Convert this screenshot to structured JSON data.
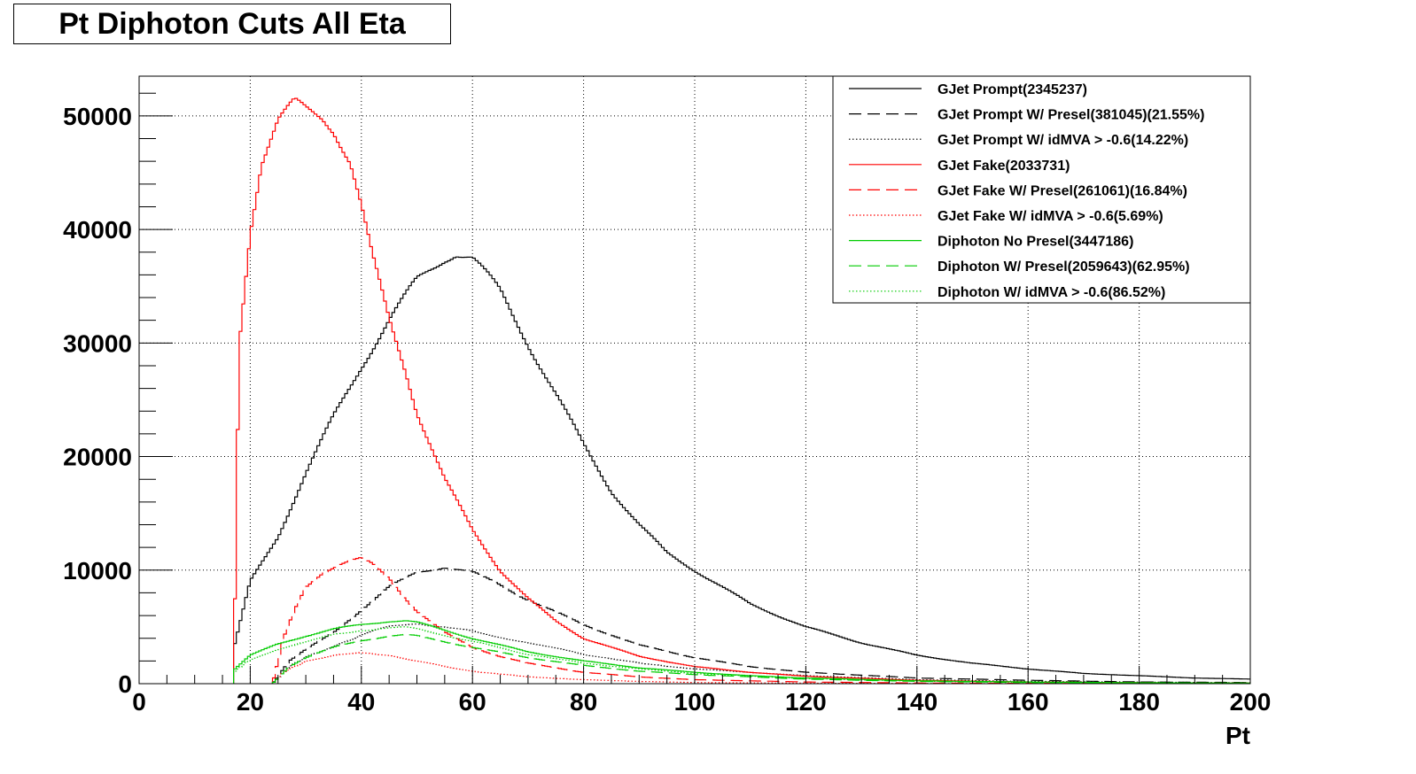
{
  "chart_data": {
    "type": "line",
    "title": "Pt Diphoton Cuts All Eta",
    "xlabel": "Pt",
    "ylabel": "",
    "xlim": [
      0,
      200
    ],
    "ylim": [
      0,
      53500
    ],
    "x_ticks": [
      0,
      20,
      40,
      60,
      80,
      100,
      120,
      140,
      160,
      180,
      200
    ],
    "y_ticks": [
      0,
      10000,
      20000,
      30000,
      40000,
      50000
    ],
    "grid": true,
    "legend_position": "top-right",
    "series": [
      {
        "name": "GJet Prompt(2345237)",
        "color": "#000000",
        "style": "solid",
        "x": [
          17,
          20,
          25,
          30,
          35,
          40,
          45,
          50,
          55,
          57,
          60,
          65,
          70,
          75,
          80,
          85,
          90,
          95,
          100,
          110,
          120,
          130,
          140,
          150,
          160,
          170,
          180,
          190,
          200
        ],
        "y": [
          3000,
          9000,
          13000,
          18500,
          23500,
          28000,
          32000,
          35500,
          37500,
          38000,
          37500,
          34500,
          30000,
          25500,
          21000,
          17000,
          14000,
          11500,
          10000,
          7000,
          5000,
          3600,
          2500,
          1800,
          1300,
          900,
          700,
          500,
          400
        ]
      },
      {
        "name": "GJet Prompt W/ Presel(381045)(21.55%)",
        "color": "#000000",
        "style": "dashed",
        "x": [
          24,
          27,
          30,
          35,
          40,
          45,
          50,
          55,
          60,
          65,
          70,
          80,
          90,
          100,
          110,
          120,
          140,
          160,
          180,
          200
        ],
        "y": [
          0,
          2000,
          3000,
          4500,
          6500,
          8500,
          9800,
          10300,
          9800,
          8700,
          7400,
          5200,
          3400,
          2300,
          1500,
          1000,
          500,
          300,
          150,
          100
        ]
      },
      {
        "name": "GJet Prompt W/ idMVA > -0.6(14.22%)",
        "color": "#000000",
        "style": "dotted",
        "x": [
          24,
          27,
          30,
          35,
          40,
          45,
          50,
          55,
          60,
          70,
          80,
          90,
          100,
          120,
          140,
          160,
          200
        ],
        "y": [
          0,
          1500,
          2300,
          3300,
          4300,
          5000,
          5300,
          5000,
          4600,
          3600,
          2600,
          1800,
          1300,
          700,
          350,
          200,
          80
        ]
      },
      {
        "name": "GJet Fake(2033731)",
        "color": "#ff0000",
        "style": "solid",
        "x": [
          17,
          18,
          20,
          22,
          25,
          28,
          30,
          33,
          35,
          38,
          40,
          42,
          45,
          48,
          50,
          55,
          60,
          65,
          70,
          75,
          80,
          90,
          100,
          110,
          120,
          140,
          160,
          180,
          200
        ],
        "y": [
          0,
          30000,
          40000,
          46000,
          49500,
          51000,
          50500,
          50000,
          49000,
          46000,
          42000,
          37500,
          32000,
          27500,
          24000,
          18000,
          13500,
          10000,
          7500,
          5500,
          4000,
          2400,
          1500,
          1000,
          650,
          300,
          150,
          80,
          50
        ]
      },
      {
        "name": "GJet Fake W/ Presel(261061)(16.84%)",
        "color": "#ff0000",
        "style": "dashed",
        "x": [
          24,
          26,
          28,
          30,
          33,
          36,
          38,
          40,
          42,
          45,
          48,
          50,
          55,
          60,
          65,
          70,
          80,
          90,
          100,
          120,
          140,
          160,
          200
        ],
        "y": [
          0,
          4000,
          6500,
          8500,
          9800,
          10500,
          10800,
          11000,
          10500,
          9300,
          7500,
          6400,
          4500,
          3200,
          2400,
          1800,
          1000,
          600,
          350,
          150,
          60,
          30,
          10
        ]
      },
      {
        "name": "GJet Fake W/ idMVA > -0.6(5.69%)",
        "color": "#ff0000",
        "style": "dotted",
        "x": [
          24,
          26,
          30,
          35,
          40,
          45,
          50,
          55,
          60,
          70,
          80,
          90,
          100,
          120,
          140,
          200
        ],
        "y": [
          0,
          1000,
          2000,
          2500,
          2700,
          2500,
          2000,
          1500,
          1100,
          600,
          350,
          200,
          100,
          40,
          20,
          5
        ]
      },
      {
        "name": "Diphoton No Presel(3447186)",
        "color": "#00cc00",
        "style": "solid",
        "x": [
          17,
          20,
          25,
          30,
          35,
          40,
          45,
          48,
          50,
          55,
          60,
          65,
          70,
          80,
          90,
          100,
          110,
          120,
          140,
          160,
          180,
          200
        ],
        "y": [
          1200,
          2500,
          3500,
          4200,
          4800,
          5200,
          5500,
          5550,
          5400,
          4700,
          4000,
          3400,
          2800,
          2000,
          1400,
          1000,
          700,
          500,
          250,
          150,
          80,
          50
        ]
      },
      {
        "name": "Diphoton W/ Presel(2059643)(62.95%)",
        "color": "#00cc00",
        "style": "dashed",
        "x": [
          24,
          27,
          30,
          35,
          40,
          45,
          48,
          50,
          55,
          60,
          70,
          80,
          90,
          100,
          120,
          140,
          160,
          200
        ],
        "y": [
          0,
          1500,
          2300,
          3200,
          3800,
          4200,
          4300,
          4200,
          3700,
          3200,
          2300,
          1600,
          1100,
          800,
          400,
          200,
          100,
          40
        ]
      },
      {
        "name": "Diphoton W/ idMVA > -0.6(86.52%)",
        "color": "#00cc00",
        "style": "dotted",
        "x": [
          17,
          20,
          25,
          30,
          35,
          40,
          45,
          48,
          50,
          55,
          60,
          70,
          80,
          90,
          100,
          120,
          140,
          160,
          200
        ],
        "y": [
          1000,
          2100,
          3000,
          3700,
          4300,
          4700,
          4900,
          4950,
          4800,
          4300,
          3700,
          2600,
          1800,
          1300,
          900,
          450,
          220,
          120,
          40
        ]
      }
    ]
  }
}
